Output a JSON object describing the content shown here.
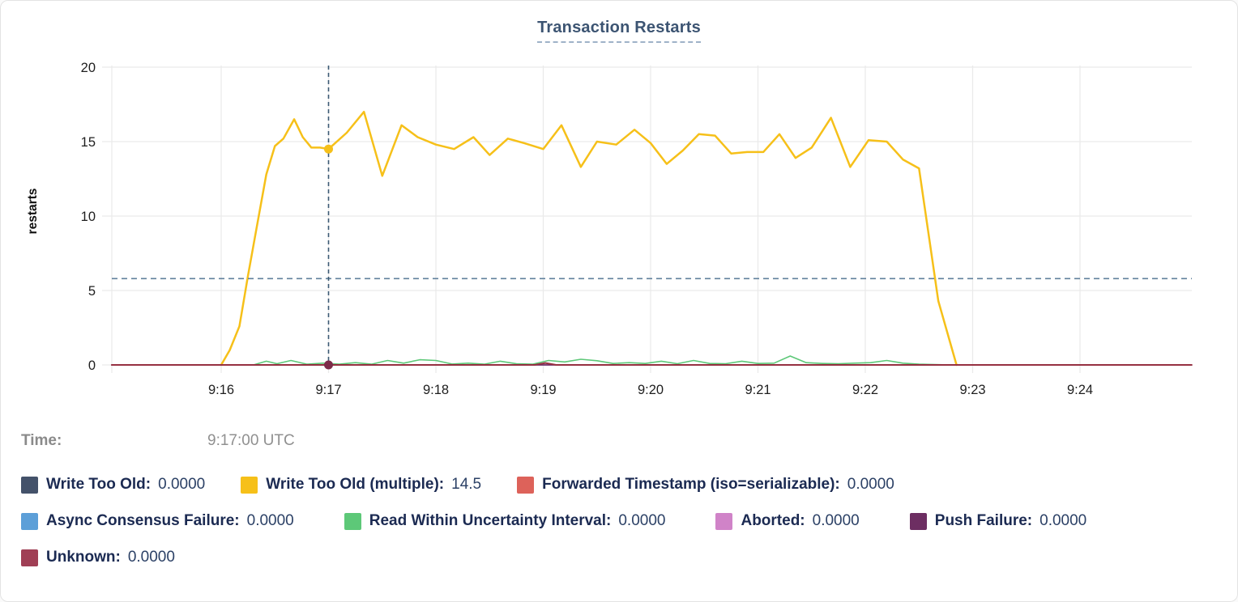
{
  "hover": {
    "label": "Time:",
    "value": "9:17:00 UTC"
  },
  "legend": {
    "rows": [
      [
        {
          "label": "Write Too Old:",
          "value": "0.0000",
          "color": "#44526a"
        },
        {
          "label": "Write Too Old (multiple):",
          "value": "14.5",
          "color": "#f6c019"
        },
        {
          "label": "Forwarded Timestamp (iso=serializable):",
          "value": "0.0000",
          "color": "#dd625a"
        }
      ],
      [
        {
          "label": "Async Consensus Failure:",
          "value": "0.0000",
          "color": "#5c9fd8"
        },
        {
          "label": "Read Within Uncertainty Interval:",
          "value": "0.0000",
          "color": "#5dc878"
        },
        {
          "label": "Aborted:",
          "value": "0.0000",
          "color": "#d083c8"
        },
        {
          "label": "Push Failure:",
          "value": "0.0000",
          "color": "#6d2e62"
        }
      ],
      [
        {
          "label": "Unknown:",
          "value": "0.0000",
          "color": "#a03f55"
        }
      ]
    ]
  },
  "chart_data": {
    "type": "line",
    "title": "Transaction Restarts",
    "ylabel": "restarts",
    "ylim": [
      0,
      20
    ],
    "yticks": [
      0,
      5,
      10,
      15,
      20
    ],
    "xtick_minutes": [
      16,
      17,
      18,
      19,
      20,
      21,
      22,
      23,
      24
    ],
    "xtick_labels": [
      "9:16",
      "9:17",
      "9:18",
      "9:19",
      "9:20",
      "9:21",
      "9:22",
      "9:23",
      "9:24"
    ],
    "x_domain_minutes": [
      14.98,
      25.04
    ],
    "grid": true,
    "legend_position": "bottom",
    "crosshair": {
      "minute": 17,
      "time_label": "9:17:00 UTC",
      "value": 14.5,
      "horizontal_guide_value": 5.8,
      "vertical_color": "#3c5a74",
      "horizontal_color": "#60809c"
    },
    "hover_markers": [
      {
        "series": "Write Too Old (multiple)",
        "t": 17,
        "v": 14.5,
        "color": "#f6c019"
      },
      {
        "series": "Unknown",
        "t": 17,
        "v": 0,
        "color": "#7d2b49"
      }
    ],
    "series": [
      {
        "name": "Write Too Old",
        "color": "#44526a",
        "width": 1.5,
        "points": [
          [
            14.98,
            0
          ],
          [
            25.04,
            0
          ]
        ]
      },
      {
        "name": "Write Too Old (multiple)",
        "color": "#f6c019",
        "width": 2.5,
        "points": [
          [
            16.0,
            0
          ],
          [
            16.08,
            1.0
          ],
          [
            16.17,
            2.6
          ],
          [
            16.25,
            6.0
          ],
          [
            16.33,
            9.2
          ],
          [
            16.42,
            12.8
          ],
          [
            16.5,
            14.7
          ],
          [
            16.58,
            15.2
          ],
          [
            16.68,
            16.5
          ],
          [
            16.76,
            15.3
          ],
          [
            16.84,
            14.6
          ],
          [
            16.92,
            14.6
          ],
          [
            17.0,
            14.5
          ],
          [
            17.17,
            15.6
          ],
          [
            17.33,
            17.0
          ],
          [
            17.5,
            12.7
          ],
          [
            17.68,
            16.1
          ],
          [
            17.83,
            15.3
          ],
          [
            18.0,
            14.8
          ],
          [
            18.17,
            14.5
          ],
          [
            18.35,
            15.3
          ],
          [
            18.5,
            14.1
          ],
          [
            18.67,
            15.2
          ],
          [
            18.82,
            14.9
          ],
          [
            19.0,
            14.5
          ],
          [
            19.17,
            16.1
          ],
          [
            19.35,
            13.3
          ],
          [
            19.5,
            15.0
          ],
          [
            19.68,
            14.8
          ],
          [
            19.85,
            15.8
          ],
          [
            20.0,
            14.9
          ],
          [
            20.15,
            13.5
          ],
          [
            20.3,
            14.4
          ],
          [
            20.45,
            15.5
          ],
          [
            20.6,
            15.4
          ],
          [
            20.75,
            14.2
          ],
          [
            20.9,
            14.3
          ],
          [
            21.05,
            14.3
          ],
          [
            21.2,
            15.5
          ],
          [
            21.35,
            13.9
          ],
          [
            21.5,
            14.6
          ],
          [
            21.68,
            16.6
          ],
          [
            21.86,
            13.3
          ],
          [
            22.03,
            15.1
          ],
          [
            22.2,
            15.0
          ],
          [
            22.35,
            13.8
          ],
          [
            22.5,
            13.2
          ],
          [
            22.68,
            4.3
          ],
          [
            22.85,
            0
          ]
        ]
      },
      {
        "name": "Forwarded Timestamp (iso=serializable)",
        "color": "#dd625a",
        "width": 1.5,
        "points": [
          [
            14.98,
            0
          ],
          [
            25.04,
            0
          ]
        ]
      },
      {
        "name": "Async Consensus Failure",
        "color": "#5c9fd8",
        "width": 1.5,
        "points": [
          [
            14.98,
            0
          ],
          [
            25.04,
            0
          ]
        ]
      },
      {
        "name": "Read Within Uncertainty Interval",
        "color": "#5dc878",
        "width": 1.6,
        "points": [
          [
            16.3,
            0
          ],
          [
            16.42,
            0.25
          ],
          [
            16.52,
            0.08
          ],
          [
            16.65,
            0.3
          ],
          [
            16.8,
            0.05
          ],
          [
            16.95,
            0.12
          ],
          [
            17.1,
            0.05
          ],
          [
            17.25,
            0.15
          ],
          [
            17.4,
            0.05
          ],
          [
            17.55,
            0.3
          ],
          [
            17.7,
            0.12
          ],
          [
            17.85,
            0.35
          ],
          [
            18.0,
            0.3
          ],
          [
            18.15,
            0.06
          ],
          [
            18.3,
            0.12
          ],
          [
            18.45,
            0.05
          ],
          [
            18.6,
            0.25
          ],
          [
            18.75,
            0.08
          ],
          [
            18.9,
            0.05
          ],
          [
            19.05,
            0.3
          ],
          [
            19.2,
            0.2
          ],
          [
            19.35,
            0.38
          ],
          [
            19.5,
            0.28
          ],
          [
            19.65,
            0.1
          ],
          [
            19.8,
            0.15
          ],
          [
            19.95,
            0.1
          ],
          [
            20.1,
            0.25
          ],
          [
            20.25,
            0.08
          ],
          [
            20.4,
            0.3
          ],
          [
            20.55,
            0.1
          ],
          [
            20.7,
            0.08
          ],
          [
            20.85,
            0.25
          ],
          [
            21.0,
            0.1
          ],
          [
            21.15,
            0.12
          ],
          [
            21.3,
            0.6
          ],
          [
            21.45,
            0.15
          ],
          [
            21.6,
            0.1
          ],
          [
            21.75,
            0.08
          ],
          [
            21.9,
            0.12
          ],
          [
            22.05,
            0.15
          ],
          [
            22.2,
            0.3
          ],
          [
            22.35,
            0.12
          ],
          [
            22.5,
            0.05
          ],
          [
            22.65,
            0.02
          ],
          [
            22.8,
            0
          ]
        ]
      },
      {
        "name": "Aborted",
        "color": "#d083c8",
        "width": 1.5,
        "points": [
          [
            14.98,
            0
          ],
          [
            25.04,
            0
          ]
        ]
      },
      {
        "name": "Push Failure",
        "color": "#6d2e62",
        "width": 1.5,
        "points": [
          [
            14.98,
            0
          ],
          [
            25.04,
            0
          ]
        ]
      },
      {
        "name": "Unknown",
        "color": "#963041",
        "width": 2,
        "points": [
          [
            14.98,
            0
          ],
          [
            18.92,
            0
          ],
          [
            19.02,
            0.13
          ],
          [
            19.12,
            0
          ],
          [
            25.04,
            0
          ]
        ]
      }
    ]
  }
}
